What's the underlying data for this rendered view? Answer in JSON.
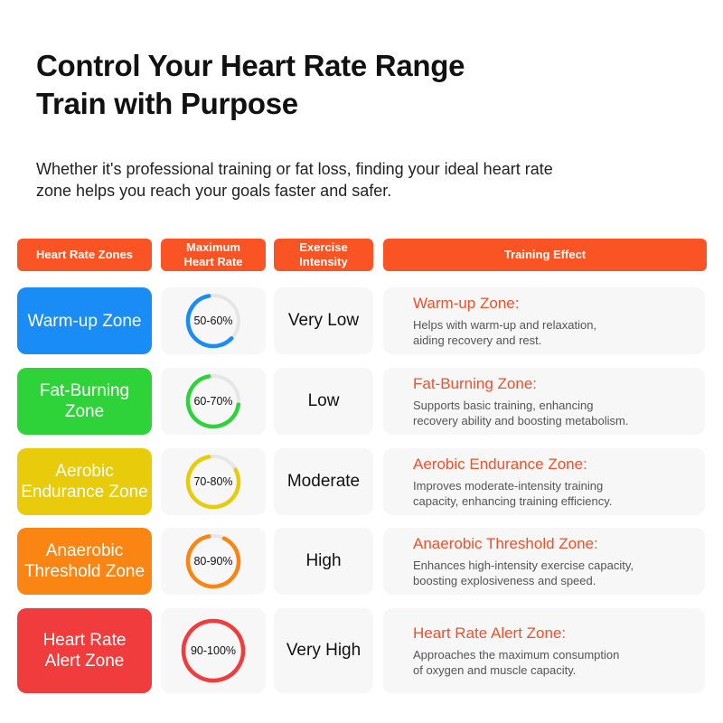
{
  "header": {
    "title_line1": "Control Your Heart Rate Range",
    "title_line2": "Train with Purpose",
    "subtitle": "Whether it's professional training or fat loss, finding your ideal heart rate zone helps you reach your goals faster and safer."
  },
  "columns": {
    "zones": "Heart Rate Zones",
    "max_rate_1": "Maximum",
    "max_rate_2": "Heart Rate",
    "intensity_1": "Exercise",
    "intensity_2": "Intensity",
    "effect": "Training Effect"
  },
  "accent_color": "#fb5424",
  "rows": [
    {
      "zone_1": "Warm-up Zone",
      "zone_2": "",
      "color": "#1a8cf5",
      "rate": "50-60%",
      "ring_fraction": 0.6,
      "intensity": "Very Low",
      "effect_title": "Warm-up Zone:",
      "effect_1": "Helps with warm-up and relaxation,",
      "effect_2": "aiding recovery and rest."
    },
    {
      "zone_1": "Fat-Burning",
      "zone_2": "Zone",
      "color": "#2ed33a",
      "rate": "60-70%",
      "ring_fraction": 0.7,
      "intensity": "Low",
      "effect_title": "Fat-Burning Zone:",
      "effect_1": "Supports basic training, enhancing",
      "effect_2": "recovery ability and boosting metabolism."
    },
    {
      "zone_1": "Aerobic",
      "zone_2": "Endurance Zone",
      "color": "#e8cc0c",
      "rate": "70-80%",
      "ring_fraction": 0.8,
      "intensity": "Moderate",
      "effect_title": "Aerobic Endurance Zone:",
      "effect_1": "Improves moderate-intensity training",
      "effect_2": "capacity, enhancing training efficiency."
    },
    {
      "zone_1": "Anaerobic",
      "zone_2": "Threshold Zone",
      "color": "#fb8512",
      "rate": "80-90%",
      "ring_fraction": 0.9,
      "intensity": "High",
      "effect_title": "Anaerobic Threshold Zone:",
      "effect_1": "Enhances high-intensity exercise capacity,",
      "effect_2": "boosting explosiveness and speed."
    },
    {
      "zone_1": "Heart Rate",
      "zone_2": "Alert Zone",
      "color": "#f03c3c",
      "rate": "90-100%",
      "ring_fraction": 1.0,
      "intensity": "Very High",
      "effect_title": "Heart Rate Alert Zone:",
      "effect_1": "Approaches the maximum consumption",
      "effect_2": "of oxygen and muscle capacity."
    }
  ]
}
